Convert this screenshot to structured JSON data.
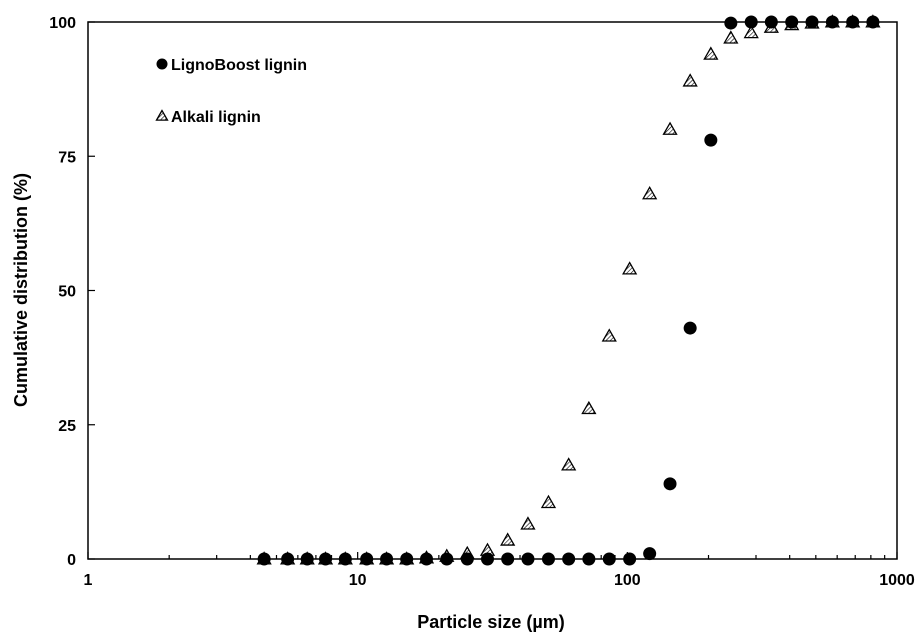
{
  "chart_data": {
    "type": "scatter",
    "xlabel": "Particle size (µm)",
    "ylabel": "Cumulative distribution (%)",
    "xscale": "log",
    "xlim": [
      1,
      1000
    ],
    "ylim": [
      0,
      100
    ],
    "xticks": [
      1,
      10,
      100,
      1000
    ],
    "xtick_labels": [
      "1",
      "10",
      "100",
      "1000"
    ],
    "yticks": [
      0,
      25,
      50,
      75,
      100
    ],
    "ytick_labels": [
      "0",
      "25",
      "50",
      "75",
      "100"
    ],
    "grid": false,
    "legend_position": "top-left",
    "series": [
      {
        "name": "LignoBoost lignin",
        "marker": "filled-circle",
        "color": "#000000",
        "x": [
          4.5,
          5.5,
          6.5,
          7.6,
          9.0,
          10.8,
          12.8,
          15.2,
          18.0,
          21.4,
          25.5,
          30.3,
          36.0,
          42.8,
          51.0,
          60.6,
          72.0,
          85.7,
          102,
          121,
          144,
          171,
          204,
          242,
          288,
          342,
          407,
          484,
          576,
          685,
          814
        ],
        "y": [
          0,
          0,
          0,
          0,
          0,
          0,
          0,
          0,
          0,
          0,
          0,
          0,
          0,
          0,
          0,
          0,
          0,
          0,
          0,
          1,
          14,
          43,
          78,
          99.8,
          100,
          100,
          100,
          100,
          100,
          100,
          100
        ]
      },
      {
        "name": "Alkali lignin",
        "marker": "hatched-triangle",
        "color": "#000000",
        "x": [
          4.5,
          5.5,
          6.5,
          7.6,
          9.0,
          10.8,
          12.8,
          15.2,
          18.0,
          21.4,
          25.5,
          30.3,
          36.0,
          42.8,
          51.0,
          60.6,
          72.0,
          85.7,
          102,
          121,
          144,
          171,
          204,
          242,
          288,
          342,
          407,
          484,
          576,
          685,
          814
        ],
        "y": [
          0,
          0,
          0,
          0,
          0,
          0,
          0,
          0,
          0.2,
          0.5,
          1,
          1.6,
          3.5,
          6.5,
          10.5,
          17.5,
          28,
          41.5,
          54,
          68,
          80,
          89,
          94,
          97,
          98,
          99,
          99.5,
          99.8,
          100,
          100,
          100
        ]
      }
    ]
  }
}
